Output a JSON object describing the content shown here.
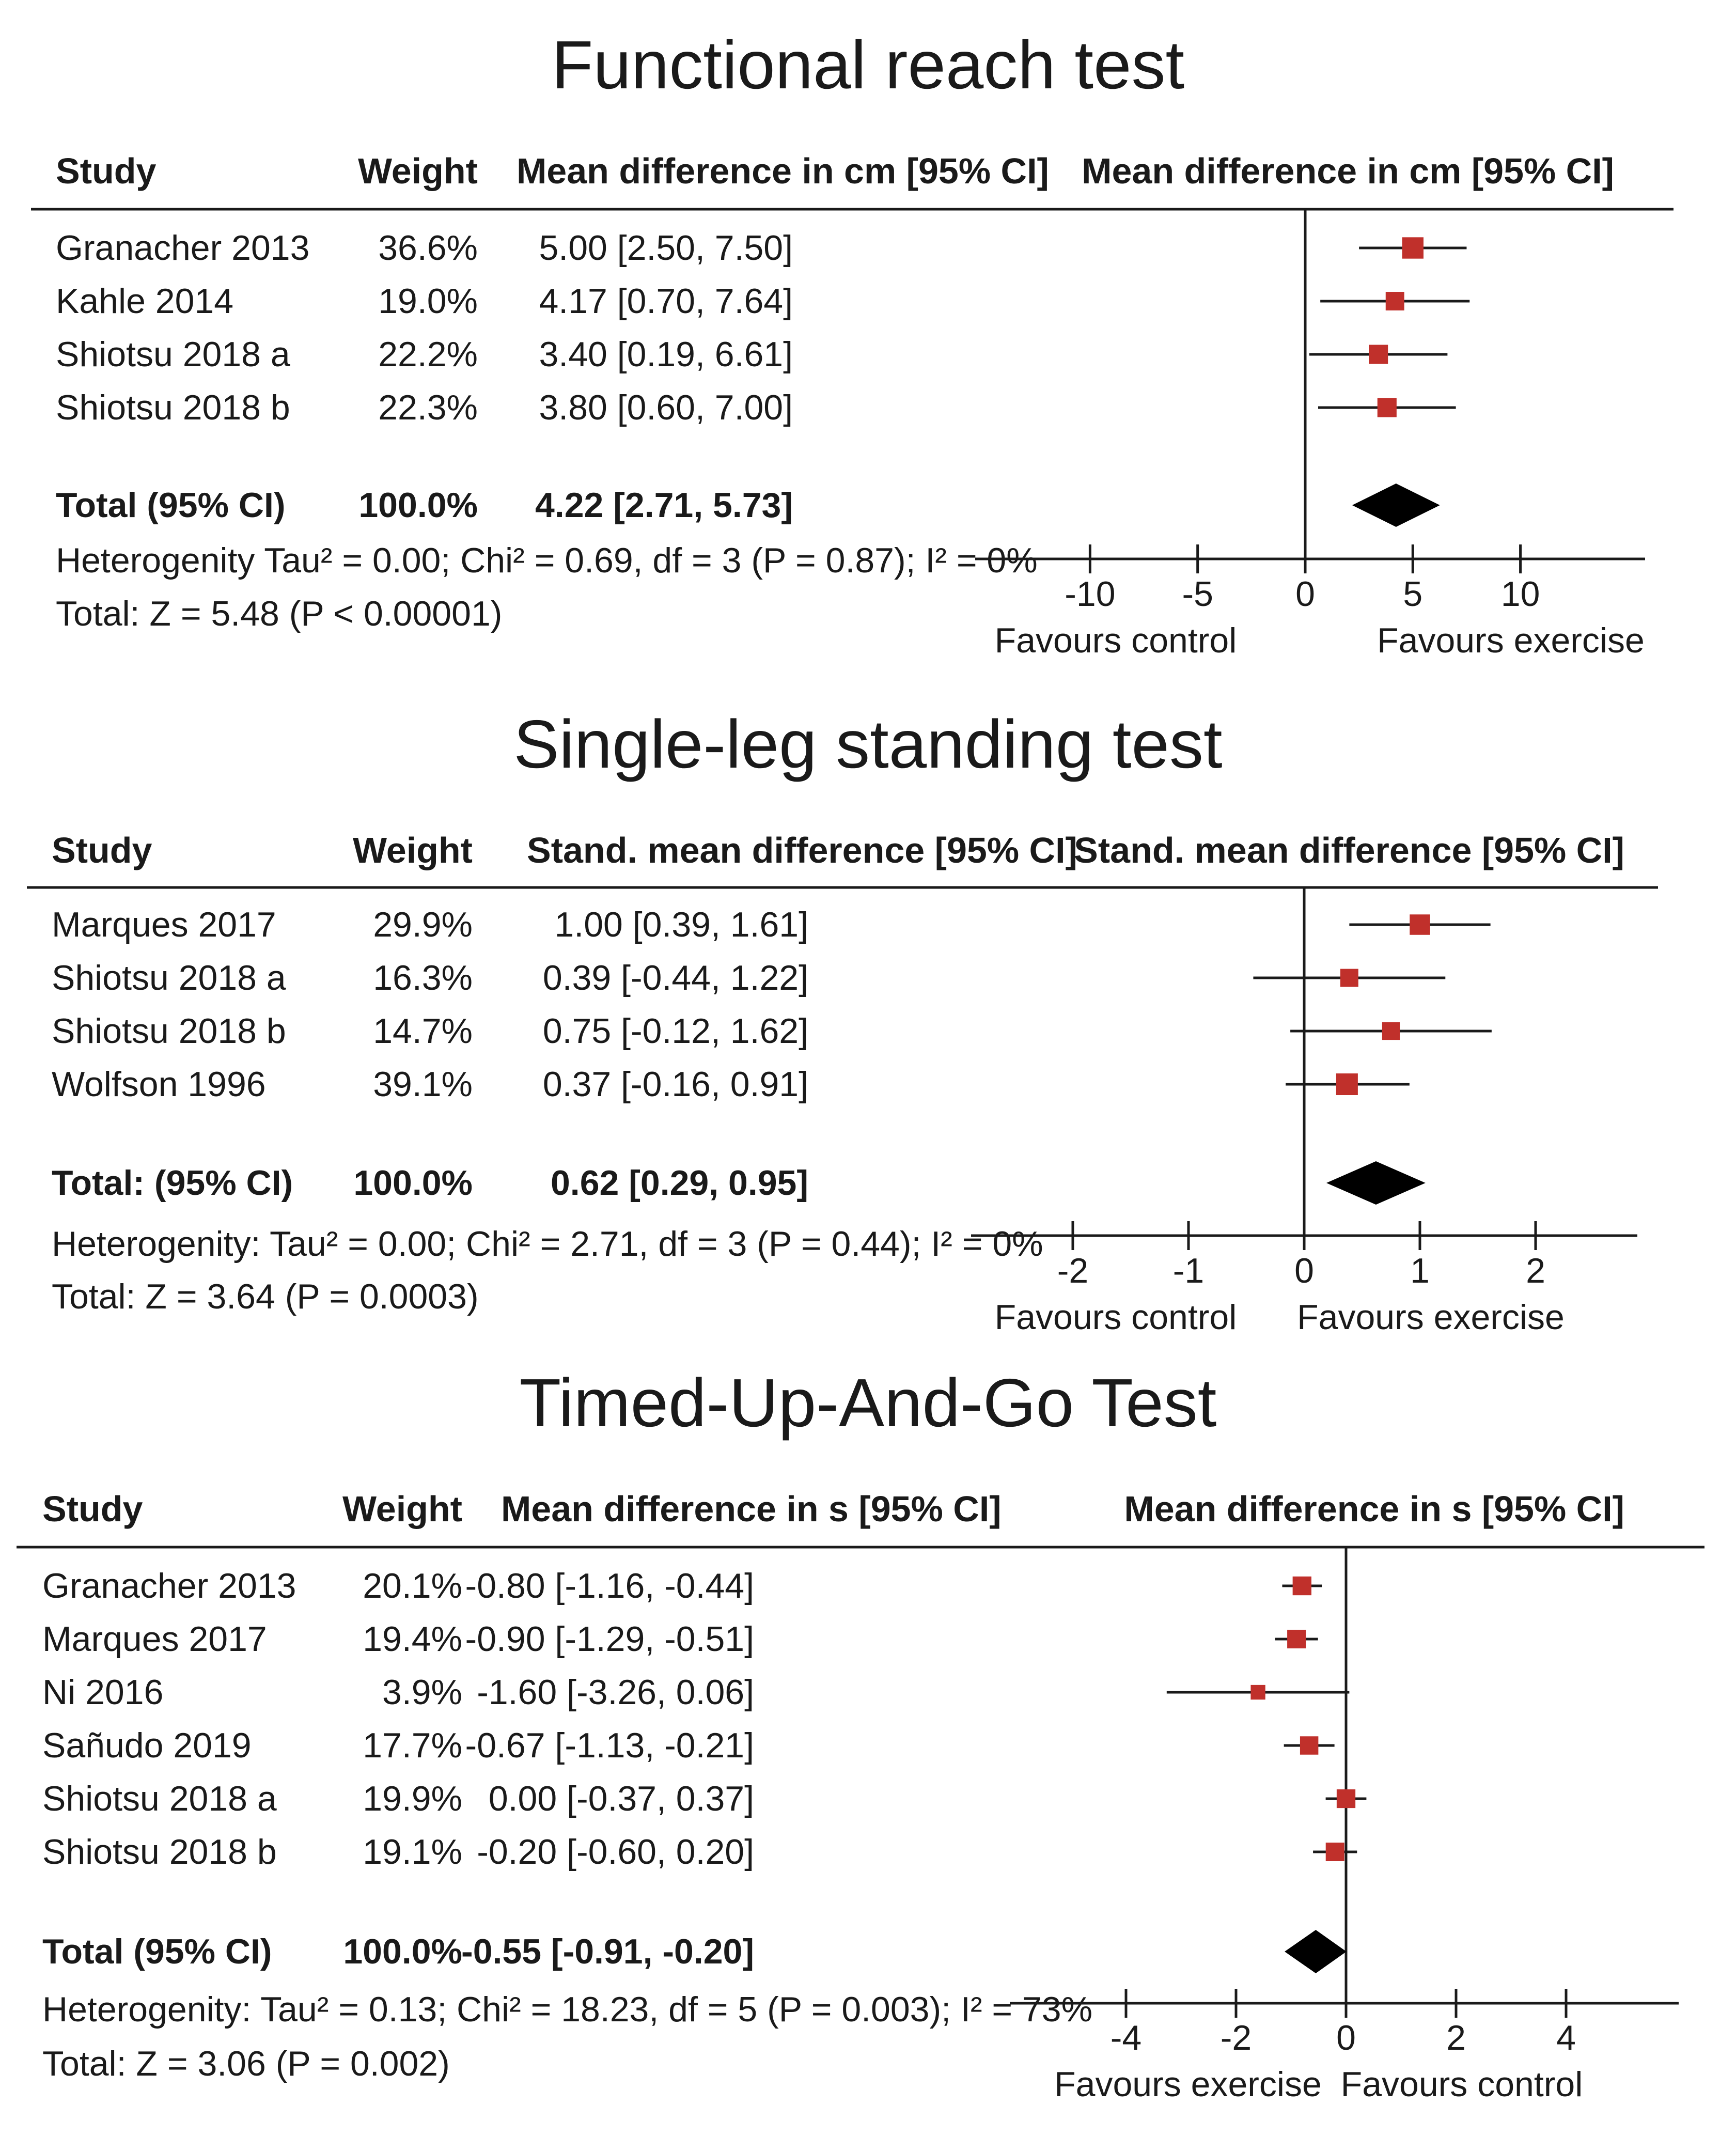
{
  "chart_data": [
    {
      "type": "forest",
      "title": "Functional reach test",
      "columns": {
        "study": "Study",
        "weight": "Weight",
        "effect": "Mean difference in cm [95% CI]",
        "plot": "Mean difference in cm [95% CI]"
      },
      "studies": [
        {
          "name": "Granacher 2013",
          "weight": "36.6%",
          "ci_text": "5.00 [2.50, 7.50]",
          "est": 5.0,
          "lo": 2.5,
          "hi": 7.5,
          "w": 36.6
        },
        {
          "name": "Kahle 2014",
          "weight": "19.0%",
          "ci_text": "4.17 [0.70, 7.64]",
          "est": 4.17,
          "lo": 0.7,
          "hi": 7.64,
          "w": 19.0
        },
        {
          "name": "Shiotsu 2018 a",
          "weight": "22.2%",
          "ci_text": "3.40 [0.19, 6.61]",
          "est": 3.4,
          "lo": 0.19,
          "hi": 6.61,
          "w": 22.2
        },
        {
          "name": "Shiotsu 2018 b",
          "weight": "22.3%",
          "ci_text": "3.80 [0.60, 7.00]",
          "est": 3.8,
          "lo": 0.6,
          "hi": 7.0,
          "w": 22.3
        }
      ],
      "total": {
        "label": "Total (95% CI)",
        "weight": "100.0%",
        "ci_text": "4.22 [2.71, 5.73]",
        "est": 4.22,
        "lo": 2.71,
        "hi": 5.73
      },
      "heterogeneity": "Heterogenity Tau² = 0.00; Chi² = 0.69, df = 3 (P = 0.87); I² = 0%",
      "overall": "Total: Z = 5.48 (P < 0.00001)",
      "axis": {
        "min": -15,
        "max": 15,
        "ticks": [
          -10,
          -5,
          0,
          5,
          10
        ],
        "tick_labels": [
          "-10",
          "-5",
          "0",
          "5",
          "10"
        ]
      },
      "favours_left": "Favours control",
      "favours_right": "Favours exercise"
    },
    {
      "type": "forest",
      "title": "Single-leg standing test",
      "columns": {
        "study": "Study",
        "weight": "Weight",
        "effect": "Stand. mean difference [95% CI]",
        "plot": "Stand. mean difference [95% CI]"
      },
      "studies": [
        {
          "name": "Marques 2017",
          "weight": "29.9%",
          "ci_text": "1.00 [0.39, 1.61]",
          "est": 1.0,
          "lo": 0.39,
          "hi": 1.61,
          "w": 29.9
        },
        {
          "name": "Shiotsu 2018 a",
          "weight": "16.3%",
          "ci_text": "0.39 [-0.44, 1.22]",
          "est": 0.39,
          "lo": -0.44,
          "hi": 1.22,
          "w": 16.3
        },
        {
          "name": "Shiotsu 2018 b",
          "weight": "14.7%",
          "ci_text": "0.75 [-0.12, 1.62]",
          "est": 0.75,
          "lo": -0.12,
          "hi": 1.62,
          "w": 14.7
        },
        {
          "name": "Wolfson 1996",
          "weight": "39.1%",
          "ci_text": "0.37 [-0.16, 0.91]",
          "est": 0.37,
          "lo": -0.16,
          "hi": 0.91,
          "w": 39.1
        }
      ],
      "total": {
        "label": "Total: (95% CI)",
        "weight": "100.0%",
        "ci_text": "0.62 [0.29, 0.95]",
        "est": 0.62,
        "lo": 0.29,
        "hi": 0.95
      },
      "heterogeneity": "Heterogenity: Tau² = 0.00; Chi² = 2.71, df = 3 (P = 0.44); I² = 0%",
      "overall": "Total: Z = 3.64 (P = 0.0003)",
      "axis": {
        "min": -2.9,
        "max": 2.9,
        "ticks": [
          -2,
          -1,
          0,
          1,
          2
        ],
        "tick_labels": [
          "-2",
          "-1",
          "0",
          "1",
          "2"
        ]
      },
      "favours_left": "Favours control",
      "favours_right": "Favours exercise"
    },
    {
      "type": "forest",
      "title": "Timed-Up-And-Go Test",
      "columns": {
        "study": "Study",
        "weight": "Weight",
        "effect": "Mean difference in s [95% CI]",
        "plot": "Mean difference in s [95% CI]"
      },
      "studies": [
        {
          "name": "Granacher 2013",
          "weight": "20.1%",
          "ci_text": "-0.80 [-1.16, -0.44]",
          "est": -0.8,
          "lo": -1.16,
          "hi": -0.44,
          "w": 20.1
        },
        {
          "name": "Marques 2017",
          "weight": "19.4%",
          "ci_text": "-0.90 [-1.29, -0.51]",
          "est": -0.9,
          "lo": -1.29,
          "hi": -0.51,
          "w": 19.4
        },
        {
          "name": "Ni 2016",
          "weight": "3.9%",
          "ci_text": "-1.60 [-3.26, 0.06]",
          "est": -1.6,
          "lo": -3.26,
          "hi": 0.06,
          "w": 3.9
        },
        {
          "name": "Sañudo 2019",
          "weight": "17.7%",
          "ci_text": "-0.67 [-1.13, -0.21]",
          "est": -0.67,
          "lo": -1.13,
          "hi": -0.21,
          "w": 17.7
        },
        {
          "name": "Shiotsu 2018 a",
          "weight": "19.9%",
          "ci_text": "0.00 [-0.37, 0.37]",
          "est": 0.0,
          "lo": -0.37,
          "hi": 0.37,
          "w": 19.9
        },
        {
          "name": "Shiotsu 2018 b",
          "weight": "19.1%",
          "ci_text": "-0.20 [-0.60, 0.20]",
          "est": -0.2,
          "lo": -0.6,
          "hi": 0.2,
          "w": 19.1
        }
      ],
      "total": {
        "label": "Total (95% CI)",
        "weight": "100.0%",
        "ci_text": "-0.55 [-0.91, -0.20]",
        "est": -0.55,
        "lo": -0.91,
        "hi": -0.2
      },
      "heterogeneity": "Heterogenity: Tau² = 0.13; Chi² = 18.23, df = 5 (P = 0.003); I² = 73%",
      "overall": "Total: Z = 3.06 (P = 0.002)",
      "axis": {
        "min": -6.1,
        "max": 6.1,
        "ticks": [
          -4,
          -2,
          0,
          2,
          4
        ],
        "tick_labels": [
          "-4",
          "-2",
          "0",
          "2",
          "4"
        ]
      },
      "favours_left": "Favours exercise",
      "favours_right": "Favours control"
    }
  ],
  "colors": {
    "square": "#c0302b",
    "line": "#1a1a1a",
    "diamond": "#000000"
  }
}
